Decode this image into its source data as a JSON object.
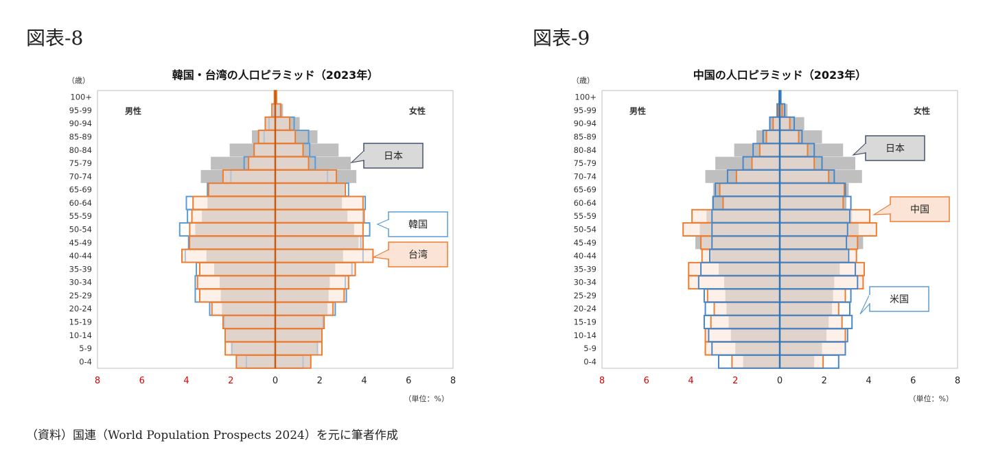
{
  "figures": [
    {
      "label": "図表-8"
    },
    {
      "label": "図表-9"
    }
  ],
  "source": "（資料）国連（World Population Prospects 2024）を元に筆者作成",
  "chart_data": [
    {
      "type": "bar",
      "orientation": "horizontal",
      "layout": "population-pyramid",
      "title": "韓国・台湾の人口ピラミッド（2023年）",
      "y_axis_title": "（歳）",
      "left_label": "男性",
      "right_label": "女性",
      "unit_note": "（単位：%）",
      "x_ticks": [
        "8",
        "6",
        "4",
        "2",
        "0",
        "2",
        "4",
        "6",
        "8"
      ],
      "xlim": [
        -8,
        8
      ],
      "categories": [
        "100+",
        "95-99",
        "90-94",
        "85-89",
        "80-84",
        "75-79",
        "70-74",
        "65-69",
        "60-64",
        "55-59",
        "50-54",
        "45-49",
        "40-44",
        "35-39",
        "30-34",
        "25-29",
        "20-24",
        "15-19",
        "10-14",
        "5-9",
        "0-4"
      ],
      "series": [
        {
          "name": "日本",
          "style": "fill",
          "color": "#bfbfbf",
          "male": [
            0.02,
            0.1,
            0.45,
            1.05,
            2.05,
            2.9,
            3.35,
            3.0,
            3.05,
            3.3,
            3.6,
            3.8,
            3.1,
            2.75,
            2.5,
            2.45,
            2.4,
            2.3,
            2.2,
            2.0,
            1.75
          ],
          "female": [
            0.08,
            0.35,
            1.1,
            1.9,
            2.85,
            3.4,
            3.65,
            3.1,
            3.0,
            3.25,
            3.55,
            3.75,
            3.05,
            2.7,
            2.45,
            2.4,
            2.35,
            2.2,
            2.1,
            1.9,
            1.6
          ]
        },
        {
          "name": "韓国",
          "style": "outline",
          "color": "#5b9bd5",
          "male": [
            0.03,
            0.07,
            0.28,
            0.5,
            0.95,
            1.4,
            2.0,
            3.05,
            4.0,
            3.95,
            4.3,
            3.9,
            4.05,
            3.55,
            3.6,
            3.6,
            2.95,
            2.3,
            2.25,
            1.95,
            1.3
          ],
          "female": [
            0.05,
            0.22,
            0.85,
            1.5,
            1.55,
            1.8,
            2.35,
            3.3,
            4.05,
            3.95,
            4.25,
            3.85,
            3.95,
            3.45,
            3.15,
            3.2,
            2.7,
            2.15,
            2.1,
            1.9,
            1.25
          ]
        },
        {
          "name": "台湾",
          "style": "outline",
          "color": "#ed7d31",
          "inner_fill": "#fbe4d5",
          "male": [
            0.04,
            0.15,
            0.45,
            0.75,
            0.95,
            1.2,
            2.35,
            3.0,
            3.7,
            3.75,
            3.85,
            3.85,
            4.2,
            3.4,
            3.5,
            3.4,
            2.85,
            2.35,
            2.25,
            2.25,
            1.75
          ],
          "female": [
            0.06,
            0.25,
            0.65,
            0.9,
            1.25,
            1.5,
            2.75,
            3.15,
            3.95,
            4.0,
            3.95,
            3.95,
            4.4,
            3.6,
            3.3,
            3.1,
            2.6,
            2.2,
            2.1,
            2.1,
            1.6
          ]
        }
      ],
      "callouts": [
        {
          "text": "日本",
          "series": "日本"
        },
        {
          "text": "韓国",
          "series": "韓国"
        },
        {
          "text": "台湾",
          "series": "台湾"
        }
      ]
    },
    {
      "type": "bar",
      "orientation": "horizontal",
      "layout": "population-pyramid",
      "title": "中国の人口ピラミッド（2023年）",
      "y_axis_title": "（歳）",
      "left_label": "男性",
      "right_label": "女性",
      "unit_note": "（単位：%）",
      "x_ticks": [
        "8",
        "6",
        "4",
        "2",
        "0",
        "2",
        "4",
        "6",
        "8"
      ],
      "xlim": [
        -8,
        8
      ],
      "categories": [
        "100+",
        "95-99",
        "90-94",
        "85-89",
        "80-84",
        "75-79",
        "70-74",
        "65-69",
        "60-64",
        "55-59",
        "50-54",
        "45-49",
        "40-44",
        "35-39",
        "30-34",
        "25-29",
        "20-24",
        "15-19",
        "10-14",
        "5-9",
        "0-4"
      ],
      "series": [
        {
          "name": "日本",
          "style": "fill",
          "color": "#bfbfbf",
          "male": [
            0.02,
            0.1,
            0.45,
            1.05,
            2.05,
            2.9,
            3.35,
            3.0,
            3.05,
            3.3,
            3.6,
            3.8,
            3.1,
            2.75,
            2.5,
            2.45,
            2.4,
            2.3,
            2.2,
            2.0,
            1.65
          ],
          "female": [
            0.08,
            0.35,
            1.1,
            1.9,
            2.85,
            3.4,
            3.7,
            3.1,
            3.0,
            3.25,
            3.55,
            3.75,
            3.05,
            2.7,
            2.45,
            2.4,
            2.35,
            2.2,
            2.1,
            1.9,
            1.55
          ]
        },
        {
          "name": "中国",
          "style": "outline",
          "color": "#ed7d31",
          "inner_fill": "#fbe4d5",
          "male": [
            0.01,
            0.06,
            0.3,
            0.6,
            0.9,
            1.25,
            1.95,
            2.7,
            2.55,
            3.95,
            4.35,
            3.55,
            3.5,
            4.1,
            4.1,
            3.25,
            2.95,
            3.1,
            3.35,
            3.35,
            2.15
          ],
          "female": [
            0.02,
            0.1,
            0.45,
            0.85,
            1.25,
            1.55,
            2.2,
            2.9,
            2.85,
            4.05,
            4.35,
            3.5,
            3.45,
            3.8,
            3.75,
            2.95,
            2.65,
            2.8,
            2.95,
            2.95,
            1.95
          ]
        },
        {
          "name": "米国",
          "style": "outline",
          "color": "#4a86c5",
          "male": [
            0.03,
            0.12,
            0.45,
            0.75,
            1.2,
            1.65,
            2.35,
            2.9,
            3.0,
            3.05,
            3.05,
            3.05,
            3.15,
            3.55,
            3.65,
            3.4,
            3.35,
            3.4,
            3.2,
            3.05,
            2.75
          ],
          "female": [
            0.05,
            0.22,
            0.65,
            1.0,
            1.55,
            1.9,
            2.45,
            2.95,
            3.2,
            3.15,
            3.05,
            3.0,
            3.1,
            3.4,
            3.5,
            3.2,
            3.15,
            3.25,
            3.05,
            2.95,
            2.65
          ]
        }
      ],
      "callouts": [
        {
          "text": "日本",
          "series": "日本"
        },
        {
          "text": "中国",
          "series": "中国"
        },
        {
          "text": "米国",
          "series": "米国"
        }
      ]
    }
  ]
}
